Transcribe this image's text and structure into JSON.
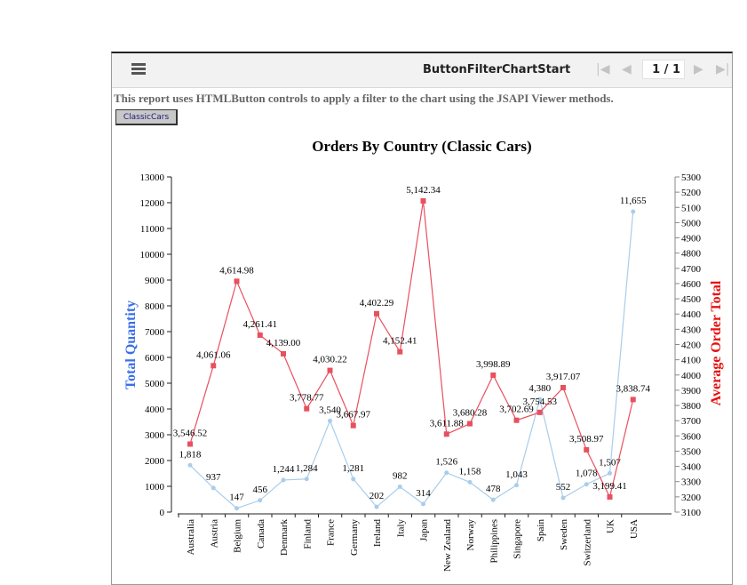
{
  "toolbar": {
    "title": "ButtonFilterChartStart",
    "page": "1 / 1"
  },
  "description": "This report uses HTMLButton controls to apply a filter to the chart using the JSAPI Viewer methods.",
  "filter_button": "ClassicCars",
  "colors": {
    "quantity": "#a9cdea",
    "average": "#e8505f",
    "left_axis_title": "#3a6fe8",
    "right_axis_title": "#e81010"
  },
  "chart_data": {
    "type": "line",
    "title": "Orders By Country (Classic Cars)",
    "categories": [
      "Australia",
      "Austria",
      "Belgium",
      "Canada",
      "Denmark",
      "Finland",
      "France",
      "Germany",
      "Ireland",
      "Italy",
      "Japan",
      "New Zealand",
      "Norway",
      "Philippines",
      "Singapore",
      "Spain",
      "Sweden",
      "Switzerland",
      "UK",
      "USA"
    ],
    "ylabel": "Total Quantity",
    "y2label": "Average Order Total",
    "ylim": [
      0,
      13000
    ],
    "yticks": [
      0,
      1000,
      2000,
      3000,
      4000,
      5000,
      6000,
      7000,
      8000,
      9000,
      10000,
      11000,
      12000,
      13000
    ],
    "y2lim": [
      3100,
      5300
    ],
    "y2ticks": [
      3100,
      3200,
      3300,
      3400,
      3500,
      3600,
      3700,
      3800,
      3900,
      4000,
      4100,
      4200,
      4300,
      4400,
      4500,
      4600,
      4700,
      4800,
      4900,
      5000,
      5100,
      5200,
      5300
    ],
    "series": [
      {
        "name": "Total Quantity",
        "axis": "left",
        "values": [
          1818,
          937,
          147,
          456,
          1244,
          1284,
          3540,
          1281,
          202,
          982,
          314,
          1526,
          1158,
          478,
          1043,
          4380,
          552,
          1078,
          1507,
          11655
        ],
        "labels": [
          "1,818",
          "937",
          "147",
          "456",
          "1,244",
          "1,284",
          "3,540",
          "1,281",
          "202",
          "982",
          "314",
          "1,526",
          "1,158",
          "478",
          "1,043",
          "4,380",
          "552",
          "1,078",
          "1,507",
          "11,655"
        ]
      },
      {
        "name": "Average Order Total",
        "axis": "right",
        "values": [
          3546.52,
          4061.06,
          4614.98,
          4261.41,
          4139.0,
          3778.77,
          4030.22,
          3667.97,
          4402.29,
          4152.41,
          5142.34,
          3611.88,
          3680.28,
          3998.89,
          3702.69,
          3754.53,
          3917.07,
          3508.97,
          3199.41,
          3838.74
        ],
        "labels": [
          "3,546.52",
          "4,061.06",
          "4,614.98",
          "4,261.41",
          "4,139.00",
          "3,778.77",
          "4,030.22",
          "3,667.97",
          "4,402.29",
          "4,152.41",
          "5,142.34",
          "3,611.88",
          "3,680.28",
          "3,998.89",
          "3,702.69",
          "3,754.53",
          "3,917.07",
          "3,508.97",
          "3,199.41",
          "3,838.74"
        ]
      }
    ]
  }
}
